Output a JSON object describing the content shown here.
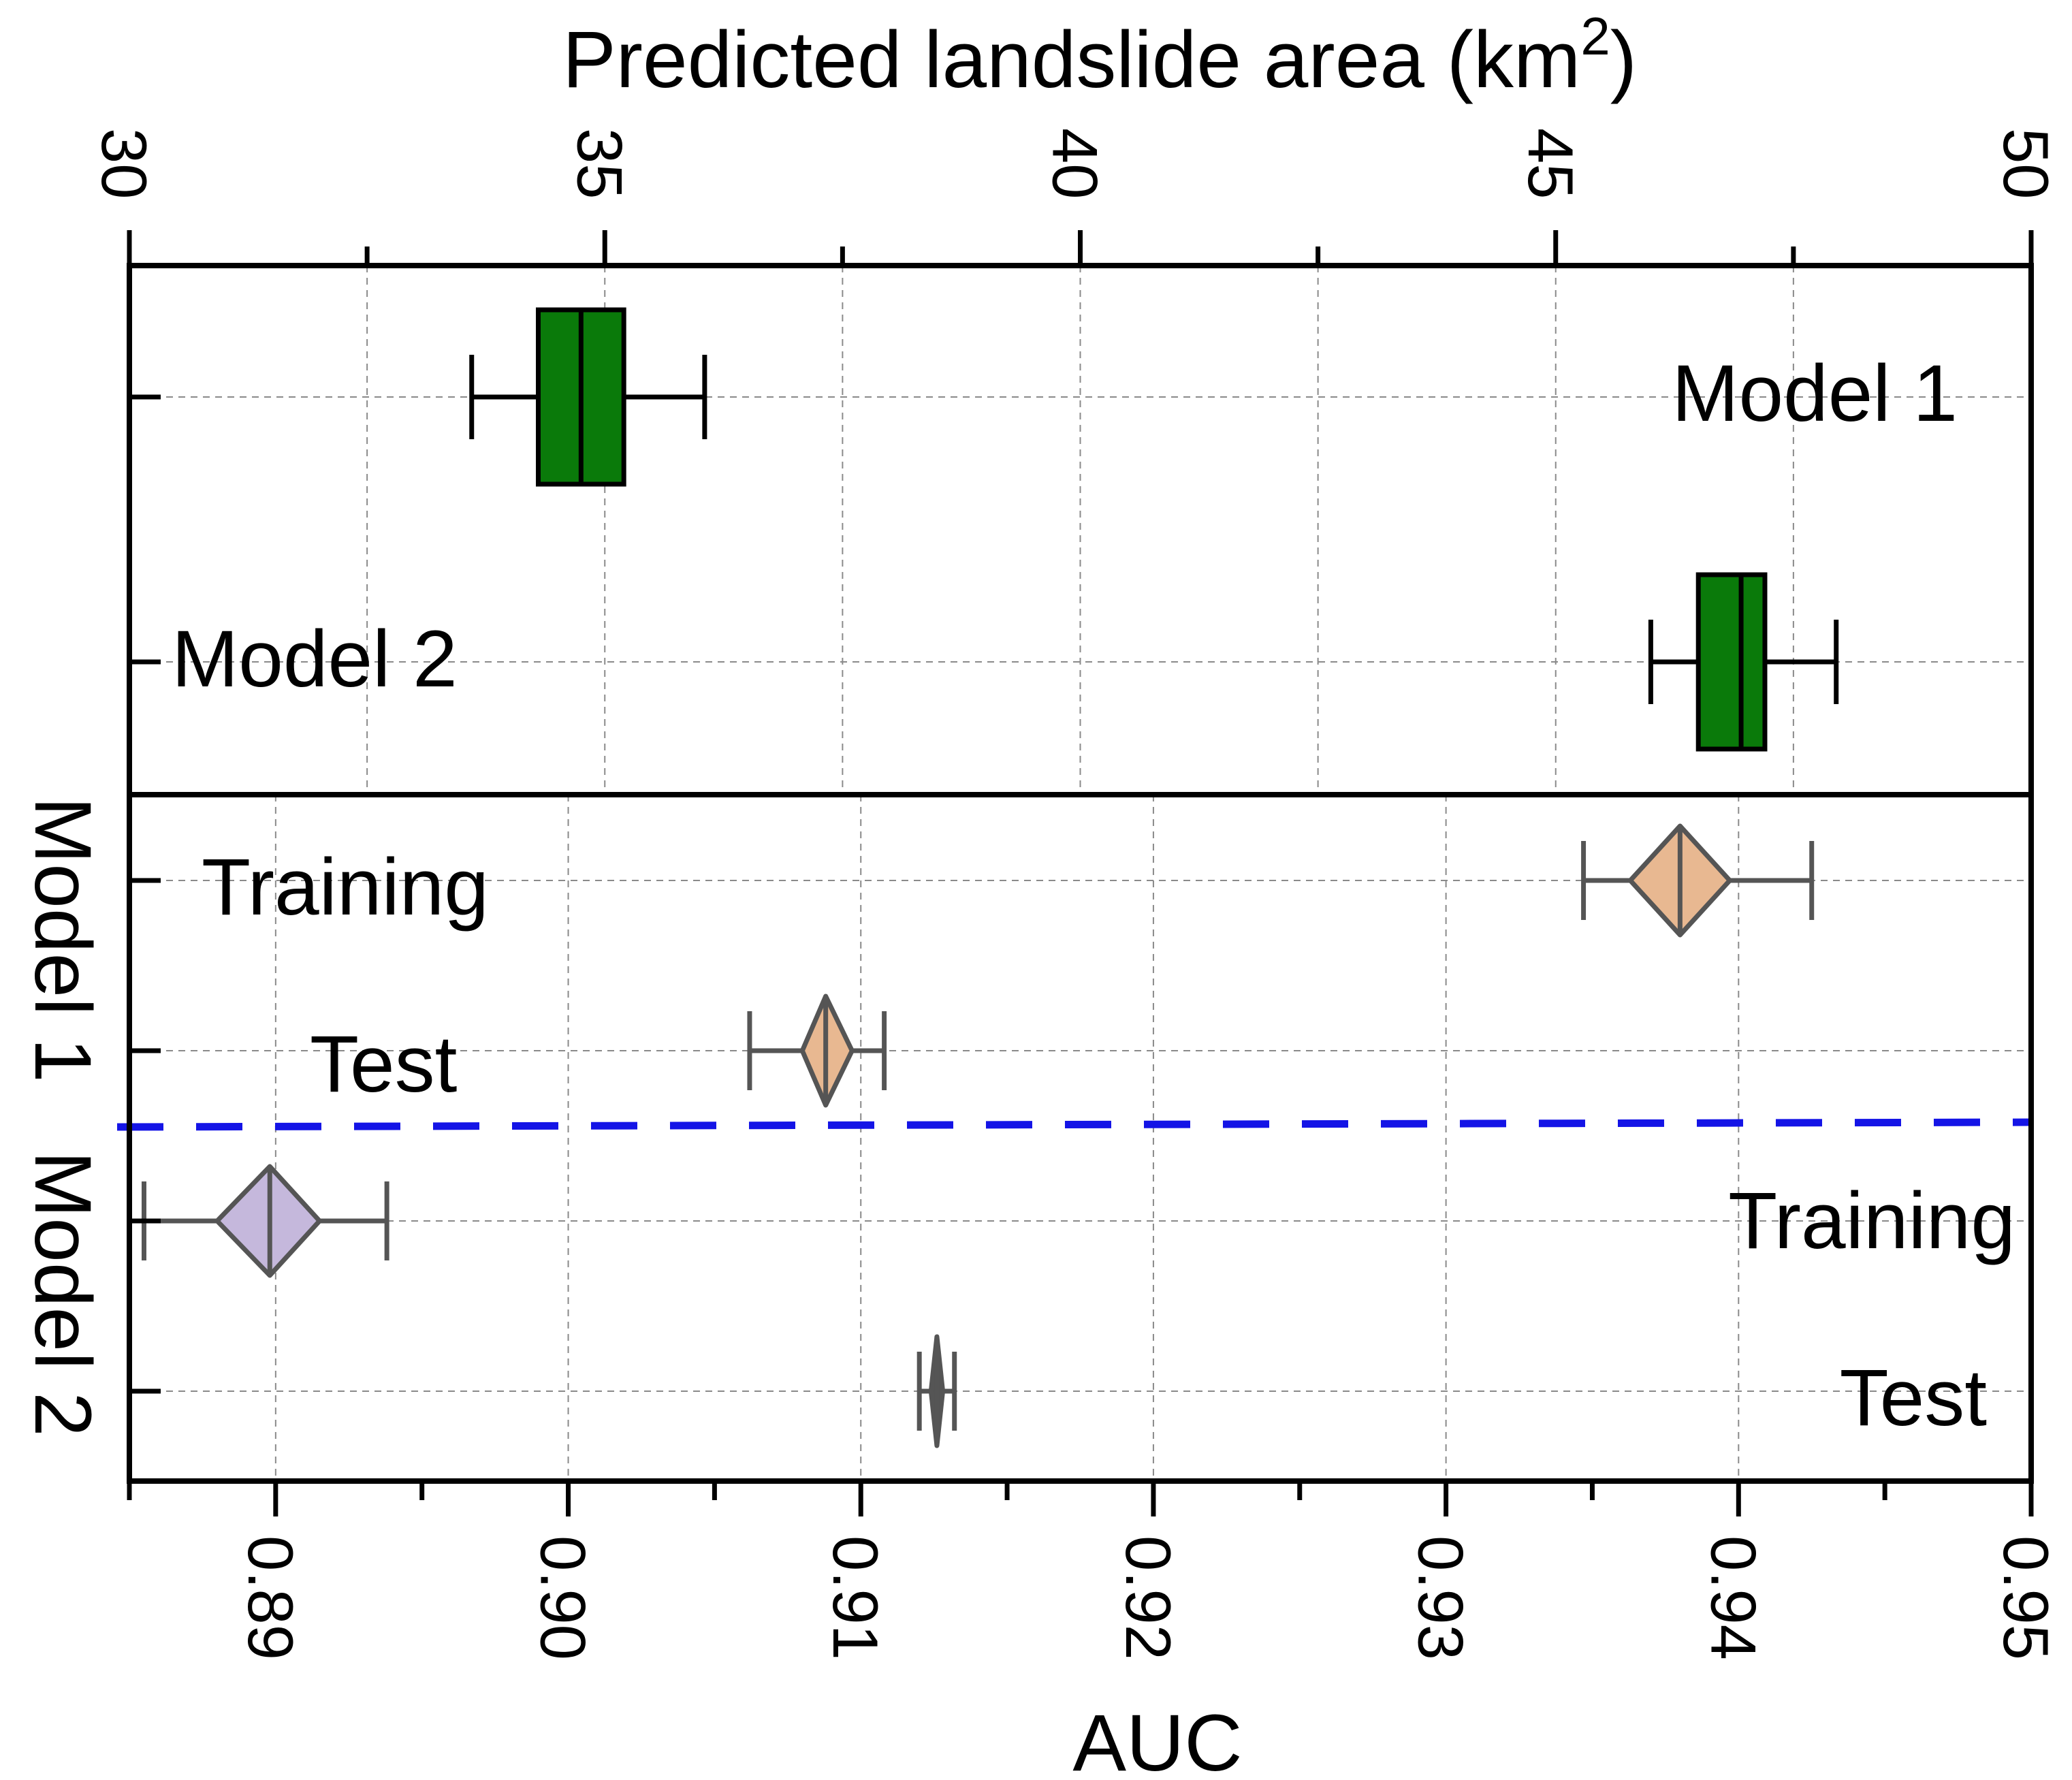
{
  "chart_data": [
    {
      "type": "boxplot",
      "orientation": "horizontal",
      "title": "Predicted landslide area (km2)",
      "title_text": "Predicted landslide area (km",
      "title_sup": "2",
      "title_tail": ")",
      "xlim": [
        30,
        50
      ],
      "xticks": [
        30,
        35,
        40,
        45,
        50
      ],
      "xtick_labels": [
        "30",
        "35",
        "40",
        "45",
        "50"
      ],
      "series": [
        {
          "name": "Model 1",
          "label": "Model 1",
          "whisker_low": 33.6,
          "q1": 34.3,
          "median": 34.75,
          "q3": 35.2,
          "whisker_high": 36.05
        },
        {
          "name": "Model 2",
          "label": "Model 2",
          "whisker_low": 46.0,
          "q1": 46.5,
          "median": 46.95,
          "q3": 47.2,
          "whisker_high": 47.95
        }
      ],
      "box_color": "#0a7a0a",
      "grid": true
    },
    {
      "type": "diamond-interval",
      "orientation": "horizontal",
      "xlabel": "AUC",
      "xlim": [
        0.885,
        0.95
      ],
      "xticks": [
        0.89,
        0.9,
        0.91,
        0.92,
        0.93,
        0.94,
        0.95
      ],
      "xtick_labels": [
        "0.89",
        "0.90",
        "0.91",
        "0.92",
        "0.93",
        "0.94",
        "0.95"
      ],
      "ylabel_left": "Model 1",
      "ylabel_right": "Model 2",
      "series": [
        {
          "group": "Model 1",
          "name": "Training",
          "label": "Training",
          "low": 0.9347,
          "diamond_low": 0.9363,
          "mean": 0.938,
          "diamond_high": 0.9397,
          "high": 0.9425,
          "color": "#e8b891"
        },
        {
          "group": "Model 1",
          "name": "Test",
          "label": "Test",
          "low": 0.9062,
          "diamond_low": 0.908,
          "mean": 0.9088,
          "diamond_high": 0.9097,
          "high": 0.9108,
          "color": "#e8b891"
        },
        {
          "group": "Model 2",
          "name": "Training",
          "label": "Training",
          "low": 0.8855,
          "diamond_low": 0.888,
          "mean": 0.8898,
          "diamond_high": 0.8915,
          "high": 0.8938,
          "color": "#c5b8dc"
        },
        {
          "group": "Model 2",
          "name": "Test",
          "label": "Test",
          "low": 0.912,
          "diamond_low": 0.9124,
          "mean": 0.9126,
          "diamond_high": 0.9128,
          "high": 0.9132,
          "color": "#555555"
        }
      ],
      "separator_color": "#1414e6",
      "grid": true
    }
  ]
}
